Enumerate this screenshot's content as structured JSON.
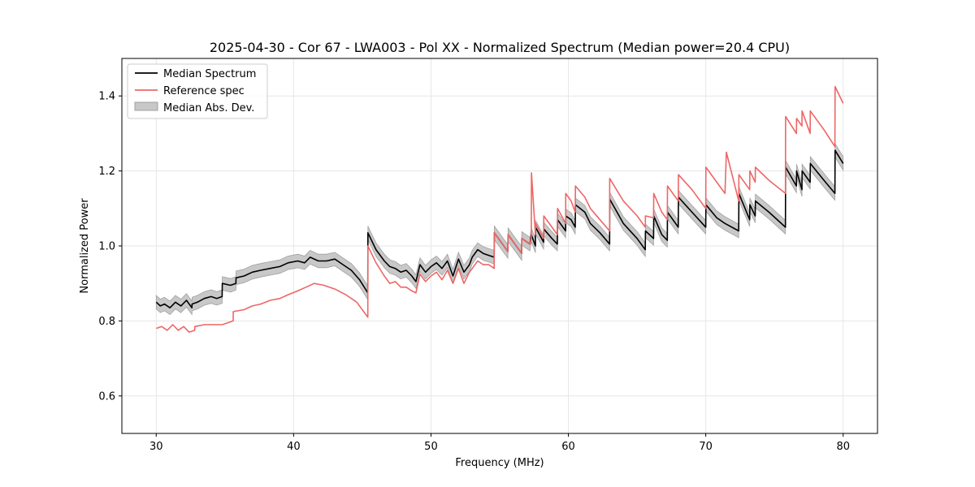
{
  "chart_data": {
    "type": "line",
    "title": "2025-04-30 - Cor 67 - LWA003 - Pol XX - Normalized Spectrum (Median power=20.4 CPU)",
    "xlabel": "Frequency (MHz)",
    "ylabel": "Normalized Power",
    "xlim": [
      27.5,
      82.5
    ],
    "ylim": [
      0.5,
      1.5
    ],
    "xticks": [
      30,
      40,
      50,
      60,
      70,
      80
    ],
    "yticks": [
      0.6,
      0.8,
      1.0,
      1.2,
      1.4
    ],
    "xtick_labels": [
      "30",
      "40",
      "50",
      "60",
      "70",
      "80"
    ],
    "ytick_labels": [
      "0.6",
      "0.8",
      "1.0",
      "1.2",
      "1.4"
    ],
    "grid": true,
    "legend_position": "top-left",
    "legend": [
      "Median Spectrum",
      "Reference spec",
      "Median Abs. Dev."
    ],
    "series": [
      {
        "name": "Median Spectrum",
        "color": "#000000",
        "x": [
          30.0,
          30.3,
          30.6,
          31.0,
          31.4,
          31.8,
          32.2,
          32.6,
          32.61,
          33.0,
          33.5,
          34.0,
          34.4,
          34.8,
          34.81,
          35.4,
          35.8,
          35.81,
          36.4,
          37.0,
          37.6,
          38.3,
          39.0,
          39.6,
          40.3,
          40.8,
          41.2,
          41.8,
          42.4,
          43.0,
          43.6,
          44.2,
          44.8,
          45.4,
          45.41,
          46.0,
          46.6,
          47.0,
          47.4,
          47.8,
          48.2,
          48.6,
          48.9,
          49.2,
          49.6,
          50.0,
          50.4,
          50.8,
          51.2,
          51.6,
          52.0,
          52.4,
          52.8,
          53.0,
          53.4,
          53.8,
          54.2,
          54.6,
          54.61,
          55.6,
          55.61,
          56.6,
          56.61,
          57.2,
          57.3,
          57.6,
          57.61,
          58.2,
          58.21,
          58.8,
          59.2,
          59.21,
          59.8,
          59.81,
          60.2,
          60.5,
          60.51,
          61.2,
          61.6,
          62.3,
          63.0,
          63.01,
          64.0,
          65.0,
          65.6,
          65.61,
          66.2,
          66.21,
          66.8,
          67.2,
          67.21,
          68.0,
          68.01,
          69.0,
          70.0,
          70.01,
          70.8,
          71.4,
          72.4,
          72.41,
          73.2,
          73.21,
          73.6,
          73.61,
          74.6,
          75.8,
          75.81,
          76.6,
          76.61,
          77.0,
          77.01,
          77.6,
          77.61,
          78.6,
          79.4,
          79.41,
          80.0
        ],
        "values": [
          0.85,
          0.84,
          0.845,
          0.835,
          0.85,
          0.84,
          0.855,
          0.835,
          0.845,
          0.85,
          0.86,
          0.865,
          0.86,
          0.865,
          0.9,
          0.895,
          0.9,
          0.915,
          0.92,
          0.93,
          0.935,
          0.94,
          0.945,
          0.955,
          0.96,
          0.955,
          0.97,
          0.96,
          0.96,
          0.965,
          0.95,
          0.935,
          0.91,
          0.875,
          1.035,
          0.99,
          0.96,
          0.945,
          0.94,
          0.93,
          0.935,
          0.92,
          0.905,
          0.95,
          0.93,
          0.945,
          0.955,
          0.94,
          0.96,
          0.92,
          0.965,
          0.93,
          0.95,
          0.97,
          0.99,
          0.98,
          0.975,
          0.97,
          1.035,
          0.985,
          1.03,
          0.98,
          1.02,
          1.005,
          1.03,
          1.0,
          1.05,
          1.01,
          1.045,
          1.02,
          1.005,
          1.07,
          1.04,
          1.08,
          1.07,
          1.05,
          1.11,
          1.09,
          1.06,
          1.035,
          1.005,
          1.125,
          1.06,
          1.02,
          0.99,
          1.04,
          1.02,
          1.08,
          1.03,
          1.015,
          1.09,
          1.05,
          1.13,
          1.09,
          1.05,
          1.11,
          1.075,
          1.06,
          1.04,
          1.14,
          1.07,
          1.11,
          1.08,
          1.12,
          1.09,
          1.05,
          1.21,
          1.16,
          1.2,
          1.15,
          1.2,
          1.17,
          1.22,
          1.175,
          1.14,
          1.255,
          1.22
        ]
      },
      {
        "name": "Reference spec",
        "color": "#ee6666",
        "x": [
          30.0,
          30.4,
          30.8,
          31.2,
          31.6,
          32.0,
          32.4,
          32.8,
          32.81,
          33.5,
          34.2,
          34.81,
          35.6,
          35.61,
          36.4,
          37.0,
          37.6,
          38.3,
          39.0,
          39.6,
          40.3,
          40.9,
          41.5,
          42.2,
          43.0,
          43.8,
          44.6,
          45.4,
          45.41,
          46.0,
          46.6,
          47.0,
          47.4,
          47.8,
          48.2,
          48.6,
          48.9,
          49.2,
          49.6,
          50.0,
          50.4,
          50.8,
          51.2,
          51.6,
          52.0,
          52.4,
          52.8,
          53.0,
          53.4,
          53.8,
          54.2,
          54.6,
          54.61,
          55.6,
          55.61,
          56.6,
          56.61,
          57.2,
          57.3,
          57.31,
          57.6,
          57.61,
          58.2,
          58.21,
          58.8,
          59.2,
          59.21,
          59.8,
          59.81,
          60.2,
          60.5,
          60.51,
          61.2,
          61.6,
          62.3,
          63.0,
          63.01,
          64.0,
          65.0,
          65.6,
          65.61,
          66.2,
          66.21,
          66.8,
          67.2,
          67.21,
          68.0,
          68.01,
          69.0,
          70.0,
          70.01,
          70.8,
          71.4,
          71.5,
          72.4,
          72.41,
          73.2,
          73.21,
          73.6,
          73.61,
          74.6,
          75.8,
          75.81,
          76.6,
          76.61,
          77.0,
          77.01,
          77.6,
          77.61,
          78.6,
          79.4,
          79.41,
          80.0
        ],
        "values": [
          0.78,
          0.785,
          0.775,
          0.79,
          0.775,
          0.785,
          0.77,
          0.775,
          0.785,
          0.79,
          0.79,
          0.79,
          0.8,
          0.825,
          0.83,
          0.84,
          0.845,
          0.855,
          0.86,
          0.87,
          0.88,
          0.89,
          0.9,
          0.895,
          0.885,
          0.87,
          0.85,
          0.81,
          1.0,
          0.955,
          0.92,
          0.9,
          0.905,
          0.89,
          0.89,
          0.88,
          0.875,
          0.925,
          0.905,
          0.92,
          0.93,
          0.91,
          0.935,
          0.9,
          0.94,
          0.9,
          0.93,
          0.94,
          0.96,
          0.95,
          0.95,
          0.94,
          1.035,
          0.985,
          1.03,
          0.98,
          1.02,
          1.005,
          1.02,
          1.195,
          1.03,
          1.06,
          1.02,
          1.08,
          1.05,
          1.03,
          1.1,
          1.06,
          1.14,
          1.12,
          1.09,
          1.16,
          1.13,
          1.1,
          1.07,
          1.04,
          1.18,
          1.12,
          1.08,
          1.05,
          1.08,
          1.075,
          1.14,
          1.09,
          1.07,
          1.16,
          1.12,
          1.19,
          1.15,
          1.1,
          1.21,
          1.17,
          1.14,
          1.25,
          1.12,
          1.19,
          1.15,
          1.2,
          1.17,
          1.21,
          1.175,
          1.14,
          1.345,
          1.3,
          1.34,
          1.32,
          1.36,
          1.3,
          1.36,
          1.31,
          1.265,
          1.425,
          1.38
        ]
      }
    ],
    "band": {
      "name": "Median Abs. Dev.",
      "color": "#c8c8c8",
      "edgecolor": "#a0a0a0",
      "half_width": 0.018
    }
  }
}
